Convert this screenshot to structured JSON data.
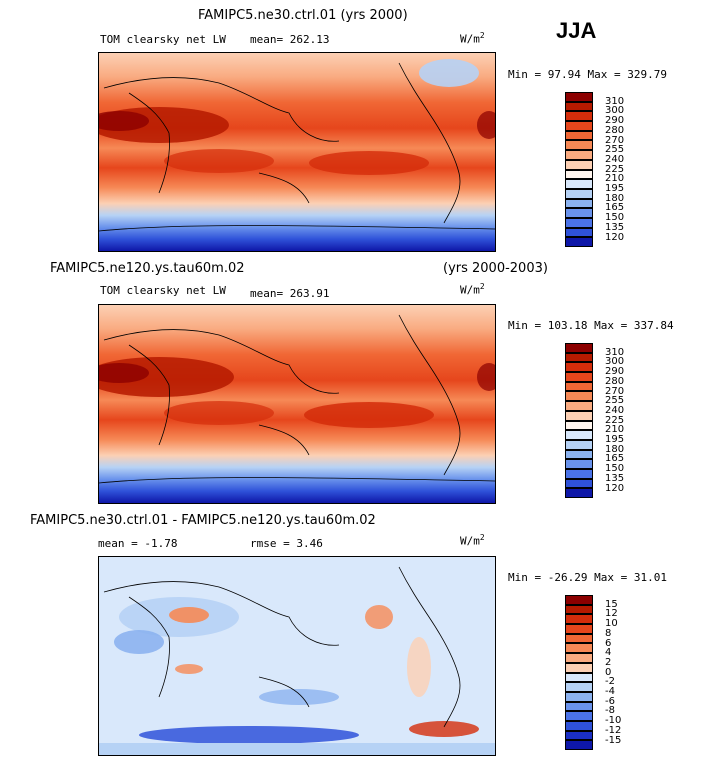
{
  "season": "JJA",
  "units_base": "W/m",
  "units_exp": "2",
  "panels": [
    {
      "title": "FAMIPC5.ne30.ctrl.01 (yrs 2000)",
      "title_right": "",
      "variable": "TOM clearsky net LW",
      "mean_text": "mean= 262.13",
      "rmse_text": "",
      "min_max": "Min =  97.94 Max = 329.79",
      "levels": [
        "310",
        "300",
        "290",
        "280",
        "270",
        "255",
        "240",
        "225",
        "210",
        "195",
        "180",
        "165",
        "150",
        "135",
        "120"
      ],
      "palette": [
        "#8c0000",
        "#b51a00",
        "#d42d0b",
        "#e6461c",
        "#f06735",
        "#f68956",
        "#f9ab81",
        "#fcd0b4",
        "#fff5ee",
        "#d9e8fb",
        "#b6d2f5",
        "#8cb3f0",
        "#6a93ec",
        "#4b73e8",
        "#2f52d9",
        "#0e17a8"
      ]
    },
    {
      "title": "FAMIPC5.ne120.ys.tau60m.02",
      "title_right": "(yrs 2000-2003)",
      "variable": "TOM clearsky net LW",
      "mean_text": "mean= 263.91",
      "rmse_text": "",
      "min_max": "Min = 103.18 Max = 337.84",
      "levels": [
        "310",
        "300",
        "290",
        "280",
        "270",
        "255",
        "240",
        "225",
        "210",
        "195",
        "180",
        "165",
        "150",
        "135",
        "120"
      ],
      "palette": [
        "#8c0000",
        "#b51a00",
        "#d42d0b",
        "#e6461c",
        "#f06735",
        "#f68956",
        "#f9ab81",
        "#fcd0b4",
        "#fff5ee",
        "#d9e8fb",
        "#b6d2f5",
        "#8cb3f0",
        "#6a93ec",
        "#4b73e8",
        "#2f52d9",
        "#0e17a8"
      ]
    },
    {
      "title": "FAMIPC5.ne30.ctrl.01 - FAMIPC5.ne120.ys.tau60m.02",
      "title_right": "",
      "variable": "",
      "mean_text": "mean =  -1.78",
      "rmse_text": "rmse =   3.46",
      "min_max": "Min = -26.29 Max =  31.01",
      "levels": [
        "15",
        "12",
        "10",
        "8",
        "6",
        "4",
        "2",
        "0",
        "-2",
        "-4",
        "-6",
        "-8",
        "-10",
        "-12",
        "-15"
      ],
      "palette": [
        "#8c0000",
        "#b51a00",
        "#d42d0b",
        "#e6461c",
        "#f06735",
        "#f68956",
        "#f9ab81",
        "#fcd0b4",
        "#d9e8fb",
        "#b6d2f5",
        "#8cb3f0",
        "#6a93ec",
        "#4b73e8",
        "#2f52d9",
        "#1b2fc4",
        "#0e17a8"
      ]
    }
  ],
  "chart_data": [
    {
      "type": "heatmap",
      "title": "FAMIPC5.ne30.ctrl.01 (yrs 2000)",
      "variable": "TOM clearsky net LW",
      "units": "W/m2",
      "mean": 262.13,
      "min": 97.94,
      "max": 329.79,
      "contour_levels": [
        120,
        135,
        150,
        165,
        180,
        195,
        210,
        225,
        240,
        255,
        270,
        280,
        290,
        300,
        310
      ]
    },
    {
      "type": "heatmap",
      "title": "FAMIPC5.ne120.ys.tau60m.02 (yrs 2000-2003)",
      "variable": "TOM clearsky net LW",
      "units": "W/m2",
      "mean": 263.91,
      "min": 103.18,
      "max": 337.84,
      "contour_levels": [
        120,
        135,
        150,
        165,
        180,
        195,
        210,
        225,
        240,
        255,
        270,
        280,
        290,
        300,
        310
      ]
    },
    {
      "type": "heatmap",
      "title": "FAMIPC5.ne30.ctrl.01 - FAMIPC5.ne120.ys.tau60m.02",
      "units": "W/m2",
      "mean": -1.78,
      "rmse": 3.46,
      "min": -26.29,
      "max": 31.01,
      "contour_levels": [
        -15,
        -12,
        -10,
        -8,
        -6,
        -4,
        -2,
        0,
        2,
        4,
        6,
        8,
        10,
        12,
        15
      ]
    }
  ]
}
